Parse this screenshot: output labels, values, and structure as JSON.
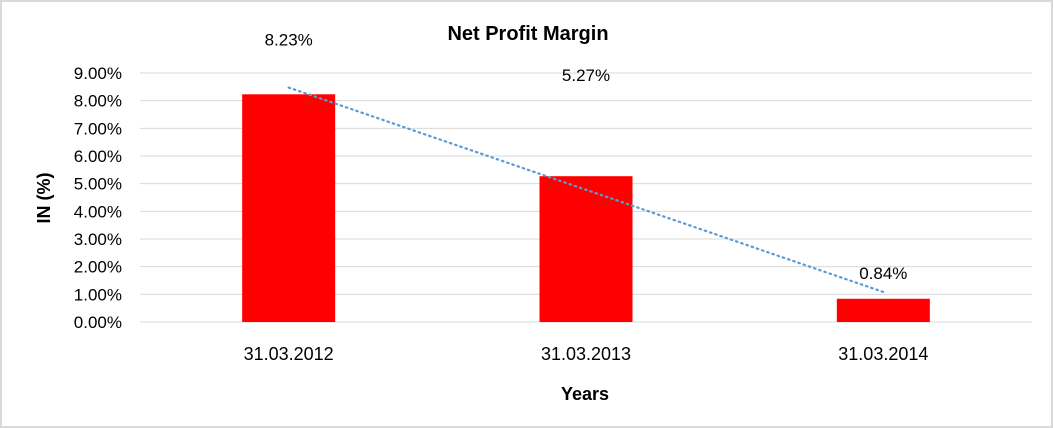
{
  "chart_data": {
    "type": "bar",
    "title": "Net Profit Margin",
    "xlabel": "Years",
    "ylabel": "IN (%)",
    "categories": [
      "31.03.2012",
      "31.03.2013",
      "31.03.2014"
    ],
    "values": [
      8.23,
      5.27,
      0.84
    ],
    "data_labels": [
      "8.23%",
      "5.27%",
      "0.84%"
    ],
    "ylim": [
      0,
      9
    ],
    "yticks": [
      "0.00%",
      "1.00%",
      "2.00%",
      "3.00%",
      "4.00%",
      "5.00%",
      "6.00%",
      "7.00%",
      "8.00%",
      "9.00%"
    ],
    "grid": true,
    "legend": "none",
    "trendline": {
      "type": "linear",
      "start": 8.475,
      "end": 1.085
    },
    "colors": {
      "bar": "#ff0000",
      "trendline": "#5b9bd5",
      "grid": "#d9d9d9"
    }
  }
}
